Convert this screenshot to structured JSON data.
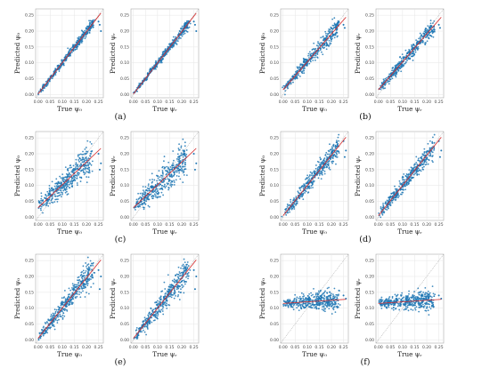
{
  "figure": {
    "panel_captions": [
      "(a)",
      "(b)",
      "(c)",
      "(d)",
      "(e)",
      "(f)"
    ]
  },
  "axes_text": {
    "xlabel_left": "True ψ₀",
    "xlabel_right": "True ψᵣ",
    "ylabel_left": "Predicted ψ₀",
    "ylabel_right": "Predicted ψᵣ"
  },
  "chart_data": {
    "type": "scatter",
    "xlim": [
      -0.01,
      0.27
    ],
    "ylim": [
      -0.01,
      0.27
    ],
    "xticks": [
      "0.00",
      "0.05",
      "0.10",
      "0.15",
      "0.20",
      "0.25"
    ],
    "yticks": [
      "0.00",
      "0.05",
      "0.10",
      "0.15",
      "0.20",
      "0.25"
    ],
    "grid": true,
    "reference_line": {
      "style": "gray dotted",
      "slope": 1,
      "intercept": 0
    },
    "colors": {
      "points": "#1f77b4",
      "fit_line": "#d62728",
      "reference_line": "#888888",
      "grid": "#e6e6e6"
    },
    "panels": [
      {
        "caption": "(a)",
        "subplots": [
          {
            "xlabel": "True ψ₀",
            "ylabel": "Predicted ψ₀",
            "fit": {
              "slope": 0.98,
              "intercept": 0.002
            },
            "spread": 0.006,
            "x_range": [
              0.005,
              0.23
            ],
            "outliers": [
              [
                0.25,
                0.23
              ],
              [
                0.255,
                0.22
              ],
              [
                0.26,
                0.2
              ]
            ]
          },
          {
            "xlabel": "True ψᵣ",
            "ylabel": "Predicted ψᵣ",
            "fit": {
              "slope": 0.98,
              "intercept": 0.002
            },
            "spread": 0.006,
            "x_range": [
              0.005,
              0.23
            ],
            "outliers": [
              [
                0.25,
                0.23
              ],
              [
                0.255,
                0.22
              ],
              [
                0.26,
                0.2
              ]
            ]
          }
        ]
      },
      {
        "caption": "(b)",
        "subplots": [
          {
            "xlabel": "True ψ₀",
            "ylabel": "Predicted ψ₀",
            "fit": {
              "slope": 0.88,
              "intercept": 0.015
            },
            "spread": 0.01,
            "x_range": [
              0.005,
              0.23
            ],
            "outliers": [
              [
                0.25,
                0.22
              ],
              [
                0.255,
                0.21
              ]
            ]
          },
          {
            "xlabel": "True ψᵣ",
            "ylabel": "Predicted ψᵣ",
            "fit": {
              "slope": 0.88,
              "intercept": 0.015
            },
            "spread": 0.01,
            "x_range": [
              0.005,
              0.23
            ],
            "outliers": [
              [
                0.25,
                0.22
              ],
              [
                0.255,
                0.21
              ]
            ]
          }
        ]
      },
      {
        "caption": "(c)",
        "subplots": [
          {
            "xlabel": "True ψ₀",
            "ylabel": "Predicted ψ₀",
            "fit": {
              "slope": 0.72,
              "intercept": 0.03
            },
            "spread": 0.02,
            "x_range": [
              0.005,
              0.22
            ],
            "outliers": [
              [
                0.25,
                0.2
              ],
              [
                0.26,
                0.17
              ],
              [
                0.255,
                0.15
              ]
            ]
          },
          {
            "xlabel": "True ψᵣ",
            "ylabel": "Predicted ψᵣ",
            "fit": {
              "slope": 0.72,
              "intercept": 0.03
            },
            "spread": 0.02,
            "x_range": [
              0.005,
              0.22
            ],
            "outliers": [
              [
                0.25,
                0.2
              ],
              [
                0.26,
                0.17
              ],
              [
                0.255,
                0.15
              ]
            ]
          }
        ]
      },
      {
        "caption": "(d)",
        "subplots": [
          {
            "xlabel": "True ψ₀",
            "ylabel": "Predicted ψ₀",
            "fit": {
              "slope": 0.95,
              "intercept": 0.005
            },
            "spread": 0.012,
            "x_range": [
              0.005,
              0.23
            ],
            "outliers": [
              [
                0.25,
                0.24
              ],
              [
                0.26,
                0.21
              ],
              [
                0.255,
                0.19
              ]
            ]
          },
          {
            "xlabel": "True ψᵣ",
            "ylabel": "Predicted ψᵣ",
            "fit": {
              "slope": 0.95,
              "intercept": 0.005
            },
            "spread": 0.012,
            "x_range": [
              0.005,
              0.23
            ],
            "outliers": [
              [
                0.25,
                0.24
              ],
              [
                0.26,
                0.21
              ],
              [
                0.255,
                0.19
              ]
            ]
          }
        ]
      },
      {
        "caption": "(e)",
        "subplots": [
          {
            "xlabel": "True ψ₀",
            "ylabel": "Predicted ψ₀",
            "fit": {
              "slope": 0.95,
              "intercept": 0.005
            },
            "spread": 0.016,
            "x_range": [
              0.005,
              0.23
            ],
            "outliers": [
              [
                0.25,
                0.22
              ],
              [
                0.26,
                0.2
              ],
              [
                0.255,
                0.16
              ]
            ]
          },
          {
            "xlabel": "True ψᵣ",
            "ylabel": "Predicted ψᵣ",
            "fit": {
              "slope": 0.95,
              "intercept": 0.005
            },
            "spread": 0.016,
            "x_range": [
              0.005,
              0.23
            ],
            "outliers": [
              [
                0.25,
                0.22
              ],
              [
                0.26,
                0.2
              ],
              [
                0.255,
                0.16
              ]
            ]
          }
        ]
      },
      {
        "caption": "(f)",
        "subplots": [
          {
            "xlabel": "True ψ₀",
            "ylabel": "Predicted ψ₀",
            "fit": {
              "slope": 0.05,
              "intercept": 0.115
            },
            "spread": 0.012,
            "x_range": [
              0.005,
              0.23
            ],
            "outliers": [
              [
                0.25,
                0.14
              ],
              [
                0.26,
                0.13
              ]
            ]
          },
          {
            "xlabel": "True ψᵣ",
            "ylabel": "Predicted ψᵣ",
            "fit": {
              "slope": 0.05,
              "intercept": 0.115
            },
            "spread": 0.012,
            "x_range": [
              0.005,
              0.23
            ],
            "outliers": [
              [
                0.25,
                0.14
              ],
              [
                0.26,
                0.13
              ]
            ]
          }
        ]
      }
    ]
  }
}
